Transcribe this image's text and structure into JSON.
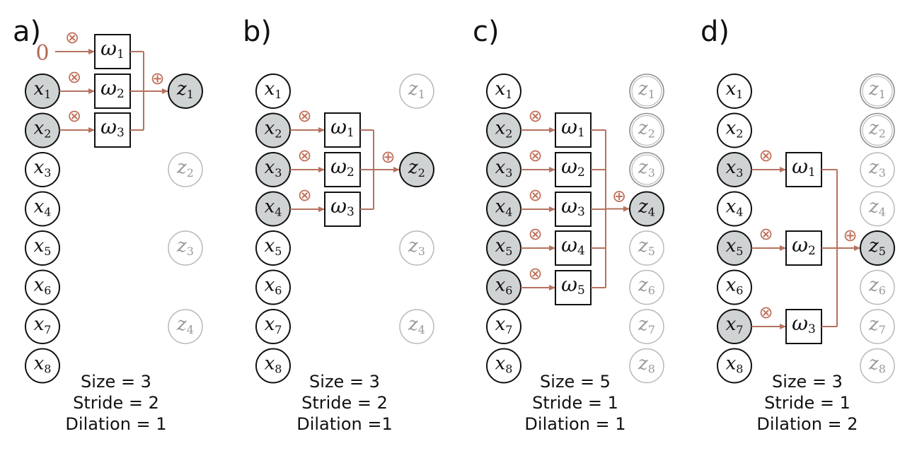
{
  "colors": {
    "arrow": "#b5725f",
    "op": "#c07a66",
    "active_fill": "#d0d3d4",
    "inactive_stroke": "#b8b8b8",
    "inactive_text": "#9a9a9a",
    "stroke": "#111111"
  },
  "panels": [
    {
      "label": "a)",
      "inputs": [
        "x1",
        "x2",
        "x3",
        "x4",
        "x5",
        "x6",
        "x7",
        "x8"
      ],
      "active_inputs": [
        1,
        2
      ],
      "pad_zero": "0",
      "weights": [
        "ω1",
        "ω2",
        "ω3"
      ],
      "outputs": [
        "z1",
        "z2",
        "z3",
        "z4"
      ],
      "active_output": 1,
      "multiply_symbol": "⊗",
      "sum_symbol": "⊕",
      "caption": [
        "Size = 3",
        "Stride = 2",
        "Dilation = 1"
      ]
    },
    {
      "label": "b)",
      "inputs": [
        "x1",
        "x2",
        "x3",
        "x4",
        "x5",
        "x6",
        "x7",
        "x8"
      ],
      "active_inputs": [
        2,
        3,
        4
      ],
      "weights": [
        "ω1",
        "ω2",
        "ω3"
      ],
      "outputs": [
        "z1",
        "z2",
        "z3",
        "z4"
      ],
      "active_output": 2,
      "multiply_symbol": "⊗",
      "sum_symbol": "⊕",
      "caption": [
        "Size = 3",
        "Stride = 2",
        "Dilation =1"
      ]
    },
    {
      "label": "c)",
      "inputs": [
        "x1",
        "x2",
        "x3",
        "x4",
        "x5",
        "x6",
        "x7",
        "x8"
      ],
      "active_inputs": [
        2,
        3,
        4,
        5,
        6
      ],
      "weights": [
        "ω1",
        "ω2",
        "ω3",
        "ω4",
        "ω5"
      ],
      "outputs": [
        "z1",
        "z2",
        "z3",
        "z4",
        "z5",
        "z6",
        "z7",
        "z8"
      ],
      "done_outputs": [
        1,
        2,
        3
      ],
      "active_output": 4,
      "multiply_symbol": "⊗",
      "sum_symbol": "⊕",
      "caption": [
        "Size = 5",
        "Stride = 1",
        "Dilation = 1"
      ]
    },
    {
      "label": "d)",
      "inputs": [
        "x1",
        "x2",
        "x3",
        "x4",
        "x5",
        "x6",
        "x7",
        "x8"
      ],
      "active_inputs": [
        3,
        5,
        7
      ],
      "weights": [
        "ω1",
        "ω2",
        "ω3"
      ],
      "outputs": [
        "z1",
        "z2",
        "z3",
        "z4",
        "z5",
        "z6",
        "z7",
        "z8"
      ],
      "done_outputs": [
        1,
        2
      ],
      "active_output": 5,
      "multiply_symbol": "⊗",
      "sum_symbol": "⊕",
      "caption": [
        "Size = 3",
        "Stride = 1",
        "Dilation = 2"
      ]
    }
  ]
}
